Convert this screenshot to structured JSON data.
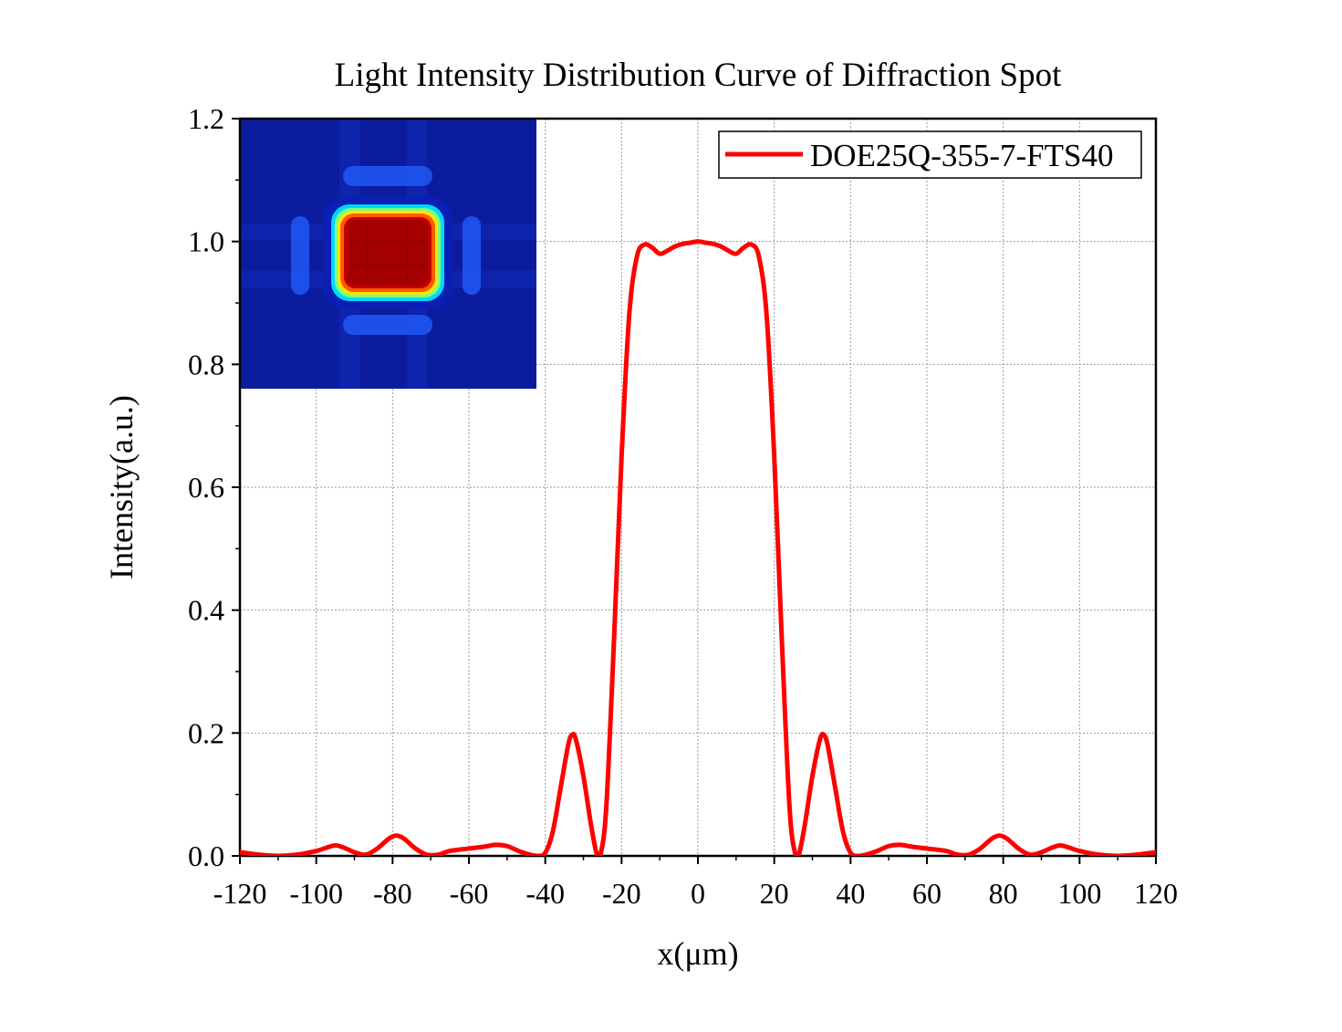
{
  "chart_data": {
    "type": "line",
    "title": "Light Intensity Distribution Curve of Diffraction Spot",
    "xlabel": "x(μm)",
    "ylabel": "Intensity(a.u.)",
    "xlim": [
      -120,
      120
    ],
    "ylim": [
      0.0,
      1.2
    ],
    "x_ticks": [
      "-120",
      "-100",
      "-80",
      "-60",
      "-40",
      "-20",
      "0",
      "20",
      "40",
      "60",
      "80",
      "100",
      "120"
    ],
    "y_ticks": [
      "0.0",
      "0.2",
      "0.4",
      "0.6",
      "0.8",
      "1.0",
      "1.2"
    ],
    "grid": true,
    "legend_position": "top-right",
    "inset": "2D diffraction spot intensity map (jet colormap), top-left",
    "series": [
      {
        "name": "DOE25Q-355-7-FTS40",
        "color": "#ff0000",
        "x": [
          -120,
          -115,
          -110,
          -105,
          -100,
          -97,
          -95,
          -93,
          -90,
          -87,
          -84,
          -81,
          -79,
          -77,
          -74,
          -71,
          -68,
          -65,
          -60,
          -56,
          -53,
          -50,
          -47,
          -44,
          -42,
          -40,
          -38,
          -36,
          -34,
          -33,
          -32,
          -30,
          -28,
          -26.5,
          -25.5,
          -24,
          -22,
          -20,
          -18,
          -16,
          -14,
          -12,
          -10,
          -8,
          -6,
          -4,
          -2,
          0,
          2,
          4,
          6,
          8,
          10,
          12,
          14,
          16,
          18,
          20,
          22,
          24,
          25.5,
          26.5,
          28,
          30,
          32,
          33,
          34,
          36,
          38,
          40,
          42,
          44,
          47,
          50,
          53,
          56,
          60,
          65,
          68,
          71,
          74,
          77,
          79,
          81,
          84,
          87,
          90,
          93,
          95,
          97,
          100,
          105,
          110,
          115,
          120
        ],
        "y": [
          0.006,
          0.002,
          0.0,
          0.002,
          0.008,
          0.014,
          0.017,
          0.014,
          0.006,
          0.002,
          0.012,
          0.028,
          0.033,
          0.028,
          0.012,
          0.002,
          0.002,
          0.008,
          0.012,
          0.015,
          0.018,
          0.016,
          0.008,
          0.002,
          0.0,
          0.005,
          0.04,
          0.11,
          0.18,
          0.197,
          0.19,
          0.13,
          0.05,
          0.003,
          0.003,
          0.08,
          0.35,
          0.65,
          0.88,
          0.975,
          0.995,
          0.99,
          0.98,
          0.985,
          0.992,
          0.996,
          0.998,
          1.0,
          0.998,
          0.996,
          0.992,
          0.985,
          0.98,
          0.99,
          0.995,
          0.975,
          0.88,
          0.65,
          0.35,
          0.08,
          0.003,
          0.003,
          0.05,
          0.13,
          0.19,
          0.197,
          0.18,
          0.11,
          0.04,
          0.005,
          0.0,
          0.002,
          0.008,
          0.016,
          0.018,
          0.015,
          0.012,
          0.008,
          0.002,
          0.002,
          0.012,
          0.028,
          0.033,
          0.028,
          0.012,
          0.002,
          0.006,
          0.014,
          0.017,
          0.014,
          0.008,
          0.002,
          0.0,
          0.002,
          0.006
        ]
      }
    ]
  }
}
